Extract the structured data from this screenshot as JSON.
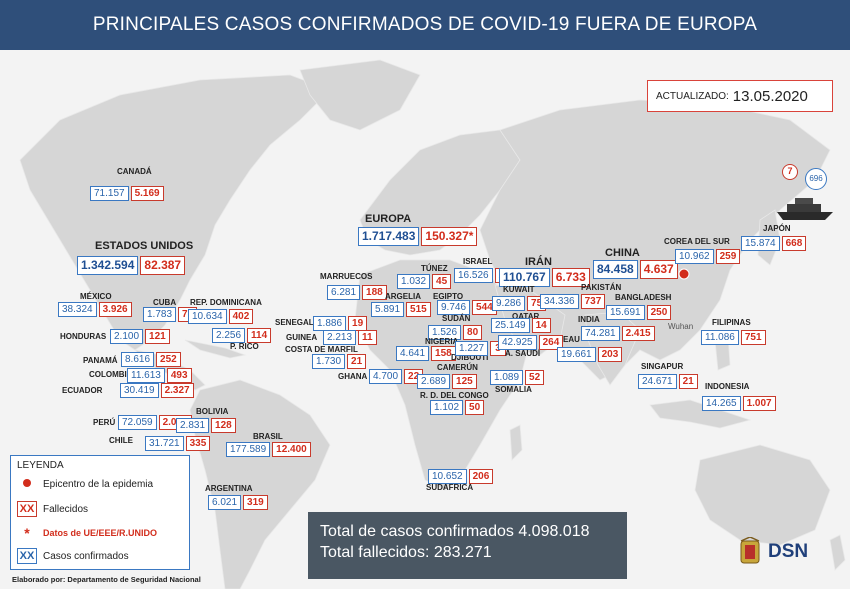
{
  "title": "PRINCIPALES CASOS CONFIRMADOS DE COVID-19 FUERA DE EUROPA",
  "updated_label": "ACTUALIZADO:",
  "updated_date": "13.05.2020",
  "ship": {
    "deaths": "7",
    "cases": "696"
  },
  "epicenter_label": "Wuhan",
  "colors": {
    "header": "#2f4f7a",
    "cases": "#3a78c2",
    "deaths": "#c83a2c",
    "land": "#d9d9d9",
    "sea": "#f3f3f3"
  },
  "countries": [
    {
      "name": "CANADÁ",
      "cases": "71.157",
      "deaths": "5.169"
    },
    {
      "name": "ESTADOS UNIDOS",
      "cases": "1.342.594",
      "deaths": "82.387"
    },
    {
      "name": "EUROPA",
      "cases": "1.717.483",
      "deaths": "150.327*"
    },
    {
      "name": "MÉXICO",
      "cases": "38.324",
      "deaths": "3.926"
    },
    {
      "name": "CUBA",
      "cases": "1.783",
      "deaths": "78"
    },
    {
      "name": "REP. DOMINICANA",
      "cases": "10.634",
      "deaths": "402"
    },
    {
      "name": "HONDURAS",
      "cases": "2.100",
      "deaths": "121"
    },
    {
      "name": "P. RICO",
      "cases": "2.256",
      "deaths": "114"
    },
    {
      "name": "PANAMÁ",
      "cases": "8.616",
      "deaths": "252"
    },
    {
      "name": "COLOMBIA",
      "cases": "11.613",
      "deaths": "493"
    },
    {
      "name": "ECUADOR",
      "cases": "30.419",
      "deaths": "2.327"
    },
    {
      "name": "PERÚ",
      "cases": "72.059",
      "deaths": "2.057"
    },
    {
      "name": "BOLIVIA",
      "cases": "2.831",
      "deaths": "128"
    },
    {
      "name": "CHILE",
      "cases": "31.721",
      "deaths": "335"
    },
    {
      "name": "BRASIL",
      "cases": "177.589",
      "deaths": "12.400"
    },
    {
      "name": "ARGENTINA",
      "cases": "6.021",
      "deaths": "319"
    },
    {
      "name": "MARRUECOS",
      "cases": "6.281",
      "deaths": "188"
    },
    {
      "name": "TÚNEZ",
      "cases": "1.032",
      "deaths": "45"
    },
    {
      "name": "ARGELIA",
      "cases": "5.891",
      "deaths": "515"
    },
    {
      "name": "EGIPTO",
      "cases": "9.746",
      "deaths": "544"
    },
    {
      "name": "ISRAEL",
      "cases": "16.526",
      "deaths": "260"
    },
    {
      "name": "SENEGAL",
      "cases": "1.886",
      "deaths": "19"
    },
    {
      "name": "GUINEA",
      "cases": "2.213",
      "deaths": "11"
    },
    {
      "name": "COSTA DE MARFIL",
      "cases": "1.730",
      "deaths": "21"
    },
    {
      "name": "SUDÁN",
      "cases": "1.526",
      "deaths": "80"
    },
    {
      "name": "NIGERIA",
      "cases": "4.641",
      "deaths": "158"
    },
    {
      "name": "DJIBOUTI",
      "cases": "1.227",
      "deaths": "3"
    },
    {
      "name": "GHANA",
      "cases": "4.700",
      "deaths": "22"
    },
    {
      "name": "CAMERÚN",
      "cases": "2.689",
      "deaths": "125"
    },
    {
      "name": "R. D. DEL CONGO",
      "cases": "1.102",
      "deaths": "50"
    },
    {
      "name": "SOMALIA",
      "cases": "1.089",
      "deaths": "52"
    },
    {
      "name": "SUDÁFRICA",
      "cases": "10.652",
      "deaths": "206"
    },
    {
      "name": "IRÁN",
      "cases": "110.767",
      "deaths": "6.733"
    },
    {
      "name": "KUWAIT",
      "cases": "9.286",
      "deaths": "75"
    },
    {
      "name": "QATAR",
      "cases": "25.149",
      "deaths": "14"
    },
    {
      "name": "A. SAUDÍ",
      "cases": "42.925",
      "deaths": "264"
    },
    {
      "name": "EAU",
      "cases": "19.661",
      "deaths": "203"
    },
    {
      "name": "PAKISTÁN",
      "cases": "34.336",
      "deaths": "737"
    },
    {
      "name": "INDIA",
      "cases": "74.281",
      "deaths": "2.415"
    },
    {
      "name": "BANGLADESH",
      "cases": "15.691",
      "deaths": "250"
    },
    {
      "name": "CHINA",
      "cases": "84.458",
      "deaths": "4.637"
    },
    {
      "name": "COREA DEL SUR",
      "cases": "10.962",
      "deaths": "259"
    },
    {
      "name": "JAPÓN",
      "cases": "15.874",
      "deaths": "668"
    },
    {
      "name": "FILIPINAS",
      "cases": "11.086",
      "deaths": "751"
    },
    {
      "name": "SINGAPUR",
      "cases": "24.671",
      "deaths": "21"
    },
    {
      "name": "INDONESIA",
      "cases": "14.265",
      "deaths": "1.007"
    }
  ],
  "legend": {
    "title": "LEYENDA",
    "epicenter": "Epicentro de la epidemia",
    "deaths_symbol": "XX",
    "deaths": "Fallecidos",
    "eu_symbol": "*",
    "eu": "Datos de UE/EEE/R.UNIDO",
    "cases_symbol": "XX",
    "cases": "Casos confirmados"
  },
  "totals": {
    "cases": "Total de casos confirmados 4.098.018",
    "deaths": "Total fallecidos: 283.271"
  },
  "footer": "Elaborado por: Departamento de Seguridad Nacional",
  "brand": "DSN"
}
